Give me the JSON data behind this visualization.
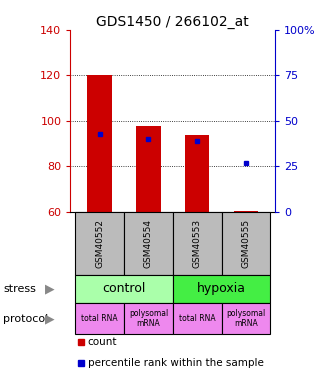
{
  "title": "GDS1450 / 266102_at",
  "samples": [
    "GSM40552",
    "GSM40554",
    "GSM40553",
    "GSM40555"
  ],
  "bar_bottoms": [
    60,
    60,
    60,
    60
  ],
  "bar_tops": [
    120,
    98,
    94,
    60.5
  ],
  "percentile_values": [
    43,
    40,
    39,
    27
  ],
  "ylim": [
    60,
    140
  ],
  "yticks_left": [
    60,
    80,
    100,
    120,
    140
  ],
  "yticks_right": [
    0,
    25,
    50,
    75,
    100
  ],
  "ytick_right_labels": [
    "0",
    "25",
    "50",
    "75",
    "100%"
  ],
  "bar_color": "#cc0000",
  "percentile_color": "#0000cc",
  "stress_spans": [
    [
      0,
      1,
      "control",
      "#aaffaa"
    ],
    [
      2,
      3,
      "hypoxia",
      "#44ee44"
    ]
  ],
  "protocol_labels": [
    "total RNA",
    "polysomal\nmRNA",
    "total RNA",
    "polysomal\nmRNA"
  ],
  "protocol_color": "#ee88ee",
  "label_color_left": "#cc0000",
  "label_color_right": "#0000cc",
  "background_color": "#ffffff",
  "sample_box_color": "#bbbbbb"
}
